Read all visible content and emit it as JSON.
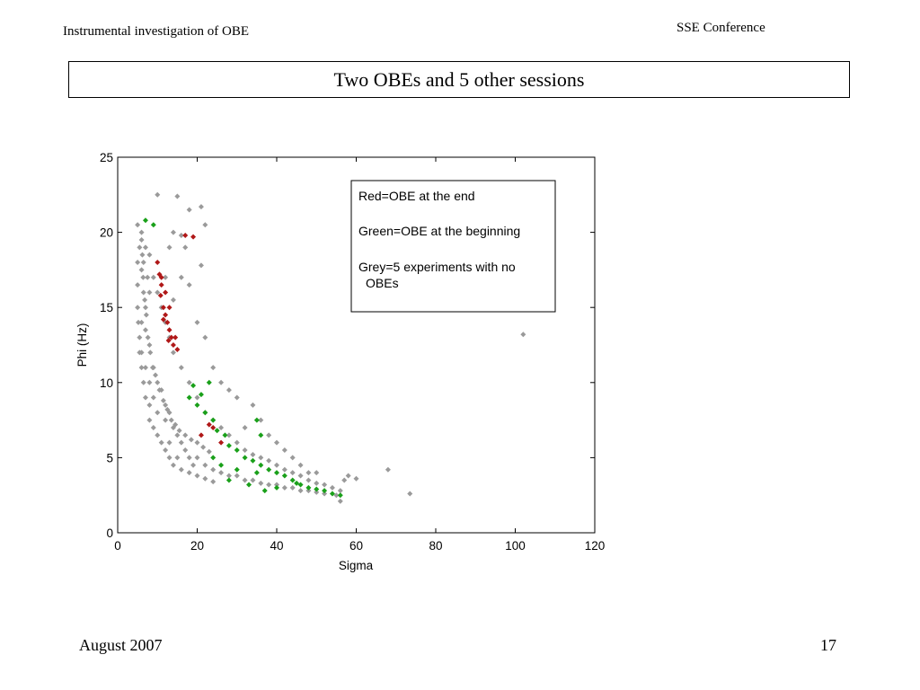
{
  "slide": {
    "header_left": "Instrumental investigation of OBE",
    "header_right": "SSE Conference",
    "title": "Two OBEs and 5 other sessions",
    "footer_left": "August 2007",
    "page_number": "17"
  },
  "chart_data": {
    "type": "scatter",
    "title": "",
    "xlabel": "Sigma",
    "ylabel": "Phi (Hz)",
    "xlim": [
      0,
      120
    ],
    "ylim": [
      0,
      25
    ],
    "xticks": [
      0,
      20,
      40,
      60,
      80,
      100,
      120
    ],
    "yticks": [
      0,
      5,
      10,
      15,
      20,
      25
    ],
    "grid": false,
    "legend_position": "top-right",
    "legend": [
      "Red=OBE at the end",
      "Green=OBE at the beginning",
      "Grey=5 experiments with no",
      "OBEs"
    ],
    "series": [
      {
        "name": "Grey=5 experiments with no OBEs",
        "color": "#9a9a9a",
        "points": [
          [
            5,
            20.5
          ],
          [
            5.5,
            19
          ],
          [
            6,
            17.5
          ],
          [
            6.5,
            16
          ],
          [
            7,
            15
          ],
          [
            6,
            14
          ],
          [
            5.5,
            13
          ],
          [
            6,
            12
          ],
          [
            7,
            11
          ],
          [
            8,
            10
          ],
          [
            6.5,
            18
          ],
          [
            7.5,
            17
          ],
          [
            8,
            16
          ],
          [
            7,
            13.5
          ],
          [
            8,
            12.5
          ],
          [
            9,
            11
          ],
          [
            10,
            10
          ],
          [
            9,
            9
          ],
          [
            8,
            8.5
          ],
          [
            10,
            8
          ],
          [
            11,
            9.5
          ],
          [
            12,
            8.5
          ],
          [
            12,
            7.5
          ],
          [
            13,
            8
          ],
          [
            14,
            7
          ],
          [
            15,
            6.5
          ],
          [
            13,
            6
          ],
          [
            16,
            6
          ],
          [
            17,
            5.5
          ],
          [
            15,
            5
          ],
          [
            18,
            5
          ],
          [
            20,
            5
          ],
          [
            19,
            4.5
          ],
          [
            22,
            4.5
          ],
          [
            24,
            4.2
          ],
          [
            26,
            4
          ],
          [
            28,
            3.8
          ],
          [
            30,
            3.8
          ],
          [
            32,
            3.5
          ],
          [
            34,
            3.5
          ],
          [
            36,
            3.3
          ],
          [
            38,
            3.2
          ],
          [
            40,
            3.2
          ],
          [
            42,
            3
          ],
          [
            44,
            3
          ],
          [
            46,
            2.8
          ],
          [
            48,
            2.8
          ],
          [
            50,
            2.7
          ],
          [
            52,
            2.6
          ],
          [
            55,
            2.5
          ],
          [
            6,
            20
          ],
          [
            7,
            19
          ],
          [
            8,
            18.5
          ],
          [
            9,
            17
          ],
          [
            10,
            16
          ],
          [
            11,
            15
          ],
          [
            12,
            14
          ],
          [
            13,
            13
          ],
          [
            14,
            12
          ],
          [
            16,
            11
          ],
          [
            18,
            10
          ],
          [
            20,
            9
          ],
          [
            22,
            8
          ],
          [
            24,
            7.5
          ],
          [
            26,
            7
          ],
          [
            28,
            6.5
          ],
          [
            30,
            6
          ],
          [
            32,
            5.5
          ],
          [
            34,
            5.2
          ],
          [
            36,
            5
          ],
          [
            38,
            4.8
          ],
          [
            40,
            4.5
          ],
          [
            42,
            4.2
          ],
          [
            44,
            4
          ],
          [
            46,
            3.8
          ],
          [
            48,
            3.5
          ],
          [
            50,
            3.3
          ],
          [
            52,
            3.2
          ],
          [
            54,
            3
          ],
          [
            56,
            2.8
          ],
          [
            10,
            22.5
          ],
          [
            15,
            22.4
          ],
          [
            18,
            21.5
          ],
          [
            21,
            21.7
          ],
          [
            22,
            20.5
          ],
          [
            14,
            20
          ],
          [
            16,
            19.8
          ],
          [
            21,
            17.8
          ],
          [
            13,
            19
          ],
          [
            17,
            19
          ],
          [
            12,
            17
          ],
          [
            16,
            17
          ],
          [
            18,
            16.5
          ],
          [
            14,
            15.5
          ],
          [
            20,
            14
          ],
          [
            22,
            13
          ],
          [
            24,
            11
          ],
          [
            26,
            10
          ],
          [
            28,
            9.5
          ],
          [
            30,
            9
          ],
          [
            34,
            8.5
          ],
          [
            36,
            7.5
          ],
          [
            32,
            7
          ],
          [
            38,
            6.5
          ],
          [
            40,
            6
          ],
          [
            42,
            5.5
          ],
          [
            44,
            5
          ],
          [
            46,
            4.5
          ],
          [
            48,
            4
          ],
          [
            50,
            4
          ],
          [
            58,
            3.8
          ],
          [
            60,
            3.6
          ],
          [
            57,
            3.5
          ],
          [
            56,
            2.1
          ],
          [
            68,
            4.2
          ],
          [
            73.5,
            2.6
          ],
          [
            102,
            13.2
          ],
          [
            5,
            18
          ],
          [
            5,
            16.5
          ],
          [
            5,
            15
          ],
          [
            5.2,
            14
          ],
          [
            5.5,
            12
          ],
          [
            6,
            11
          ],
          [
            6.5,
            10
          ],
          [
            7,
            9
          ],
          [
            8,
            7.5
          ],
          [
            9,
            7
          ],
          [
            10,
            6.5
          ],
          [
            11,
            6
          ],
          [
            12,
            5.5
          ],
          [
            13,
            5
          ],
          [
            14,
            4.5
          ],
          [
            16,
            4.2
          ],
          [
            18,
            4
          ],
          [
            20,
            3.8
          ],
          [
            22,
            3.6
          ],
          [
            24,
            3.4
          ],
          [
            6,
            19.5
          ],
          [
            6.2,
            18.5
          ],
          [
            6.4,
            17
          ],
          [
            6.8,
            15.5
          ],
          [
            7.2,
            14.5
          ],
          [
            7.6,
            13
          ],
          [
            8.2,
            12
          ],
          [
            8.8,
            11
          ],
          [
            9.5,
            10.5
          ],
          [
            10.5,
            9.5
          ],
          [
            11.5,
            8.8
          ],
          [
            12.5,
            8.2
          ],
          [
            13.5,
            7.5
          ],
          [
            14.5,
            7.2
          ],
          [
            15.5,
            6.8
          ],
          [
            17,
            6.5
          ],
          [
            18.5,
            6.2
          ],
          [
            20,
            6
          ],
          [
            21.5,
            5.7
          ],
          [
            23,
            5.4
          ]
        ]
      },
      {
        "name": "Red=OBE at the end",
        "color": "#b01818",
        "points": [
          [
            10,
            18
          ],
          [
            10.5,
            17.2
          ],
          [
            11,
            16.5
          ],
          [
            10.8,
            15.8
          ],
          [
            11.5,
            15
          ],
          [
            12,
            14.5
          ],
          [
            12.5,
            14
          ],
          [
            13,
            13.5
          ],
          [
            13.5,
            13
          ],
          [
            14,
            12.5
          ],
          [
            11,
            17
          ],
          [
            12,
            16
          ],
          [
            13,
            15
          ],
          [
            11.5,
            14.2
          ],
          [
            12.8,
            12.8
          ],
          [
            14.5,
            13
          ],
          [
            15,
            12.2
          ],
          [
            17,
            19.8
          ],
          [
            19,
            19.7
          ],
          [
            23,
            7.2
          ],
          [
            24,
            7
          ],
          [
            21,
            6.5
          ],
          [
            26,
            6
          ]
        ]
      },
      {
        "name": "Green=OBE at the beginning",
        "color": "#1aa01a",
        "points": [
          [
            7,
            20.8
          ],
          [
            9,
            20.5
          ],
          [
            19,
            9.8
          ],
          [
            21,
            9.2
          ],
          [
            23,
            10
          ],
          [
            18,
            9
          ],
          [
            20,
            8.5
          ],
          [
            22,
            8
          ],
          [
            24,
            7.5
          ],
          [
            25,
            6.8
          ],
          [
            27,
            6.5
          ],
          [
            28,
            5.8
          ],
          [
            30,
            5.5
          ],
          [
            32,
            5
          ],
          [
            34,
            4.8
          ],
          [
            36,
            4.5
          ],
          [
            38,
            4.2
          ],
          [
            40,
            4
          ],
          [
            42,
            3.8
          ],
          [
            44,
            3.5
          ],
          [
            46,
            3.2
          ],
          [
            48,
            3
          ],
          [
            50,
            2.9
          ],
          [
            52,
            2.8
          ],
          [
            54,
            2.6
          ],
          [
            56,
            2.5
          ],
          [
            36,
            6.5
          ],
          [
            35,
            4
          ],
          [
            30,
            4.2
          ],
          [
            26,
            4.5
          ],
          [
            24,
            5
          ],
          [
            28,
            3.5
          ],
          [
            33,
            3.2
          ],
          [
            37,
            2.8
          ],
          [
            40,
            3
          ],
          [
            45,
            3.3
          ],
          [
            35,
            7.5
          ]
        ]
      }
    ]
  }
}
